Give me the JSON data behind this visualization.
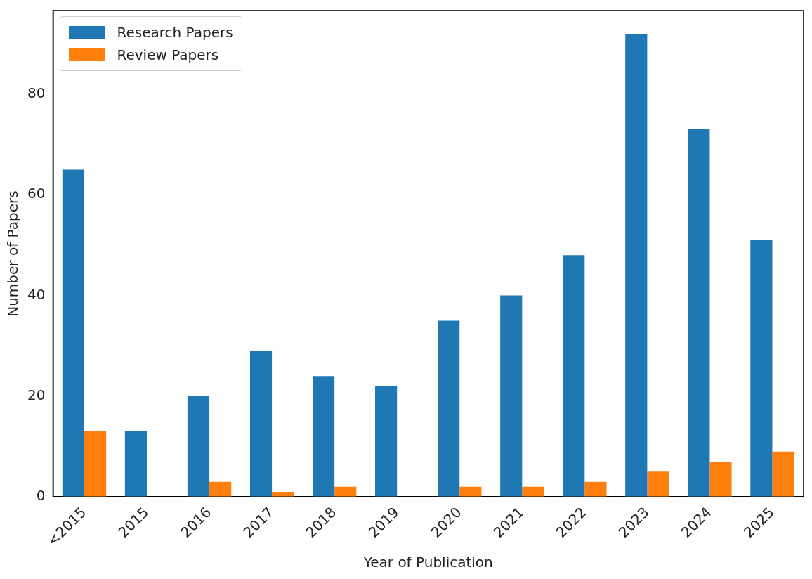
{
  "chart_data": {
    "type": "bar",
    "xlabel": "Year of Publication",
    "ylabel": "Number of Papers",
    "categories": [
      "<2015",
      "2015",
      "2016",
      "2017",
      "2018",
      "2019",
      "2020",
      "2021",
      "2022",
      "2023",
      "2024",
      "2025"
    ],
    "series": [
      {
        "name": "Research Papers",
        "color": "#1f77b4",
        "values": [
          65,
          13,
          20,
          29,
          24,
          22,
          35,
          40,
          48,
          92,
          73,
          51
        ]
      },
      {
        "name": "Review Papers",
        "color": "#ff7f0e",
        "values": [
          13,
          0,
          3,
          1,
          2,
          0,
          2,
          2,
          3,
          5,
          7,
          9
        ]
      }
    ],
    "ylim": [
      0,
      96.6
    ],
    "yticks": [
      0,
      20,
      40,
      60,
      80
    ],
    "grid": false,
    "legend": "top left"
  }
}
